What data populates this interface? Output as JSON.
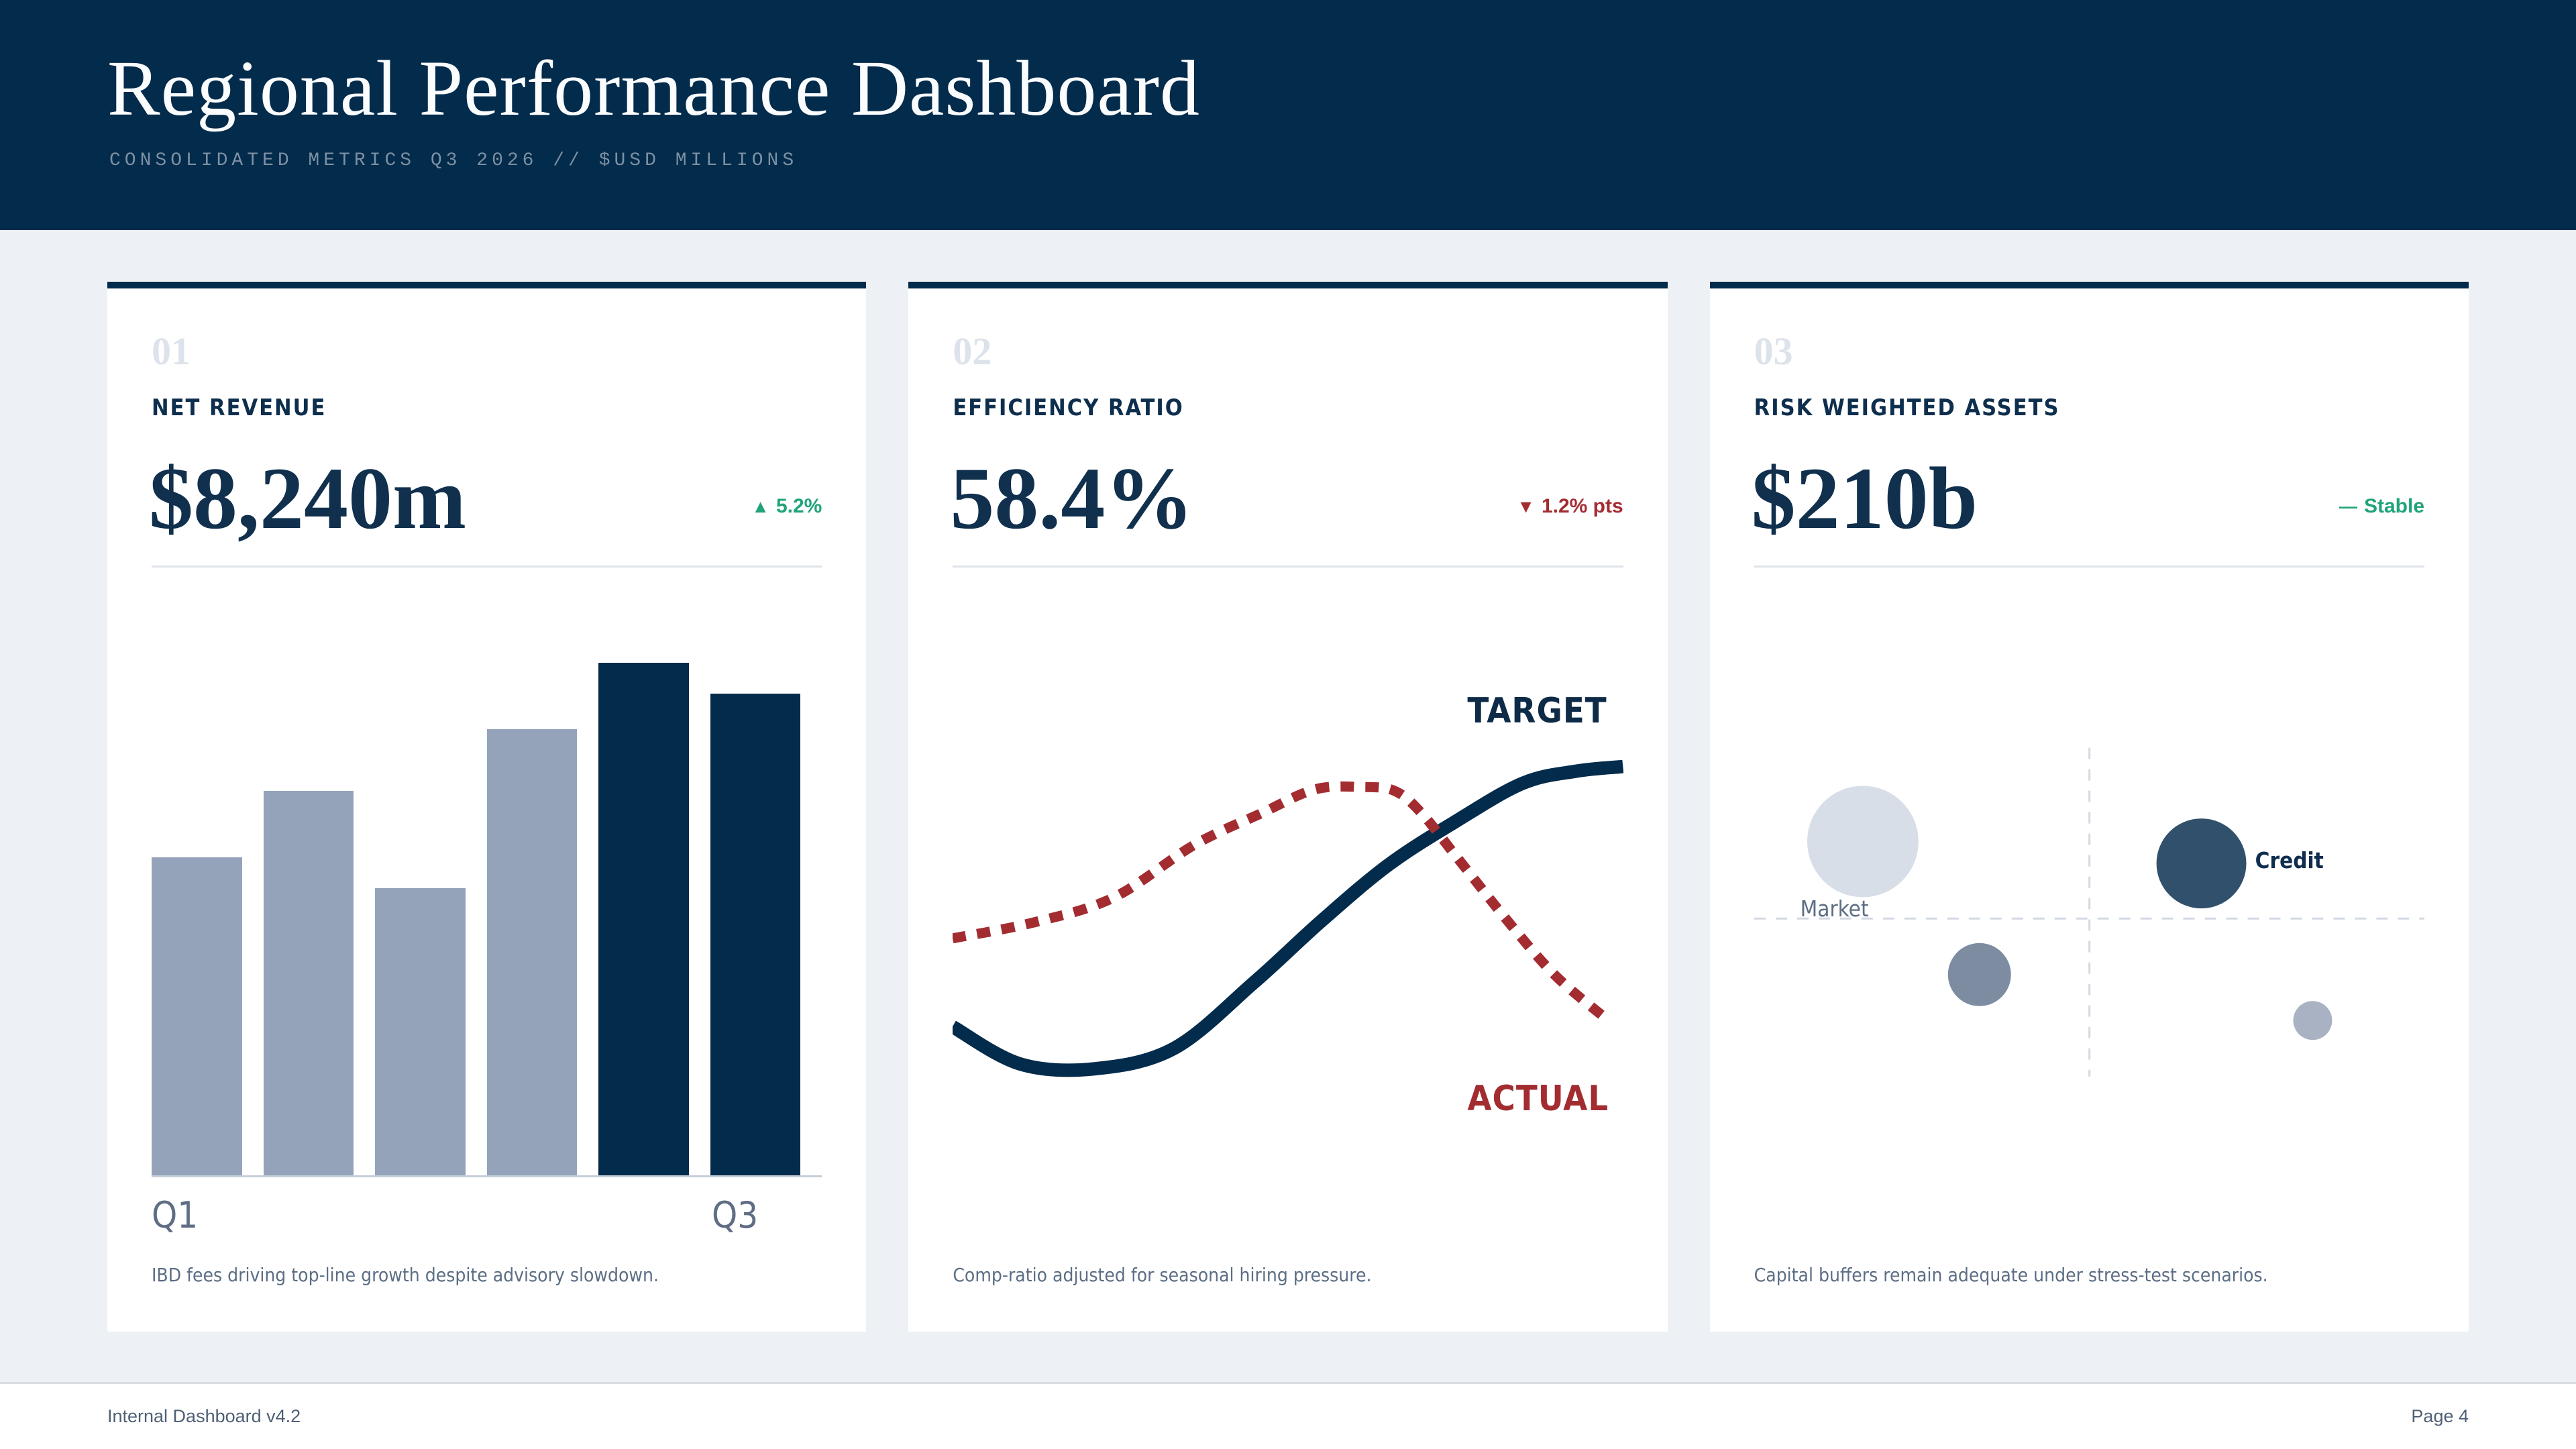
{
  "page": {
    "title": "Regional Performance Dashboard",
    "subtitle": "CONSOLIDATED METRICS Q3 2026 // $USD MILLIONS",
    "footer_left": "Internal Dashboard v4.2",
    "footer_right": "Page 4"
  },
  "colors": {
    "navy": "#032b4b",
    "page_background": "#edf0f4",
    "card_background": "#ffffff",
    "positive_green": "#1fa37a",
    "negative_red": "#a32c31",
    "bar_gray": "#94a3ba",
    "muted_slate": "#5c6e84",
    "light_index_gray": "#dde3eb"
  },
  "cards": [
    {
      "index": "01",
      "label": "NET REVENUE",
      "value": "$8,240m",
      "delta_icon": "▲",
      "delta_text": "5.2%",
      "delta_direction": "up",
      "footnote": "IBD fees driving top-line growth despite advisory slowdown."
    },
    {
      "index": "02",
      "label": "EFFICIENCY RATIO",
      "value": "58.4%",
      "delta_icon": "▼",
      "delta_text": "1.2% pts",
      "delta_direction": "down",
      "footnote": "Comp-ratio adjusted for seasonal hiring pressure."
    },
    {
      "index": "03",
      "label": "RISK WEIGHTED ASSETS",
      "value": "$210b",
      "delta_icon": "—",
      "delta_text": "Stable",
      "delta_direction": "flat",
      "footnote": "Capital buffers remain adequate under stress-test scenarios."
    }
  ],
  "chart_data": [
    {
      "type": "bar",
      "title": "Net Revenue by quarter",
      "note": "no numeric axis shown; values are relative bar heights, max bar = 100",
      "values": [
        62,
        75,
        56,
        87,
        100,
        94
      ],
      "colors": [
        "#94a3ba",
        "#94a3ba",
        "#94a3ba",
        "#94a3ba",
        "#032b4b",
        "#032b4b"
      ],
      "ticks": [
        {
          "label": "Q1",
          "bar_index": 0
        },
        {
          "label": "Q3",
          "bar_index": 5
        }
      ],
      "grid": false,
      "baseline_color": "#c6cdd8"
    },
    {
      "type": "line",
      "title": "Efficiency ratio: target vs actual",
      "note": "unlabeled axes; points are [x_percent, y_percent_from_top] of plot area",
      "series": [
        {
          "name": "TARGET",
          "color": "#032b4b",
          "style": "solid",
          "points": [
            [
              0,
              75.7
            ],
            [
              10,
              83
            ],
            [
              21,
              84
            ],
            [
              33,
              80
            ],
            [
              45,
              67
            ],
            [
              55,
              55
            ],
            [
              65,
              44
            ],
            [
              75,
              35.5
            ],
            [
              85,
              28
            ],
            [
              93,
              25.6
            ],
            [
              100,
              24.7
            ]
          ]
        },
        {
          "name": "ACTUAL",
          "color": "#a32c31",
          "style": "dashed",
          "points": [
            [
              0,
              58.4
            ],
            [
              12,
              55.3
            ],
            [
              24,
              50.4
            ],
            [
              36,
              40.1
            ],
            [
              46,
              33.9
            ],
            [
              54,
              29.2
            ],
            [
              61,
              28.7
            ],
            [
              66,
              29.5
            ],
            [
              70,
              33.9
            ],
            [
              75,
              42.1
            ],
            [
              83,
              55.3
            ],
            [
              90,
              65.8
            ],
            [
              98,
              74.7
            ]
          ]
        }
      ],
      "grid": false,
      "legend_position": "inline-right"
    },
    {
      "type": "scatter",
      "title": "Risk weighted assets by risk type (bubble quadrant)",
      "note": "unlabeled quadrant; coords are percent of plot area, y from top, r as percent of plot width",
      "points": [
        {
          "label": "Market",
          "x": 16.2,
          "y": 39.4,
          "r": 8.3,
          "color": "#d8dee7"
        },
        {
          "label": "Credit",
          "x": 66.7,
          "y": 43.7,
          "r": 6.7,
          "color": "#31506b"
        },
        {
          "label": "",
          "x": 33.6,
          "y": 65.5,
          "r": 4.7,
          "color": "#7d8ca1"
        },
        {
          "label": "",
          "x": 83.3,
          "y": 74.5,
          "r": 2.9,
          "color": "#a8b2c2"
        }
      ],
      "quadrant_lines": {
        "vertical": {
          "x": 50,
          "y1": 21,
          "y2": 85.5
        },
        "horizontal": {
          "y": 54.5,
          "x1": 0,
          "x2": 100
        },
        "color": "#d3dae2",
        "style": "dashed"
      },
      "grid": false
    }
  ]
}
